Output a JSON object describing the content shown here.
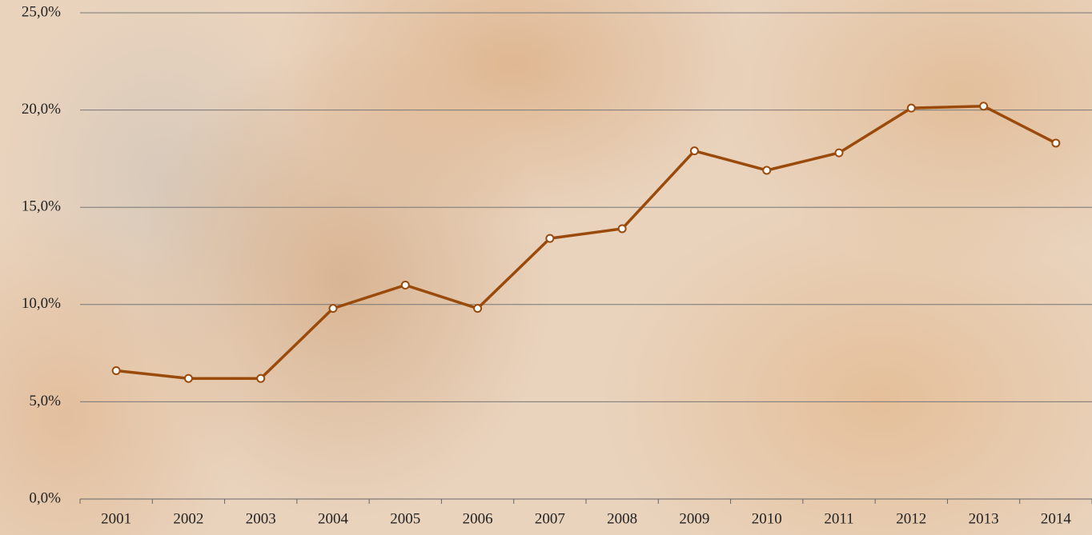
{
  "chart_data": {
    "type": "line",
    "categories": [
      "2001",
      "2002",
      "2003",
      "2004",
      "2005",
      "2006",
      "2007",
      "2008",
      "2009",
      "2010",
      "2011",
      "2012",
      "2013",
      "2014"
    ],
    "series": [
      {
        "color": "#9a4a0b",
        "values": [
          6.6,
          6.2,
          6.2,
          9.8,
          11.0,
          9.8,
          13.4,
          13.9,
          17.9,
          16.9,
          17.8,
          20.1,
          20.2,
          18.3
        ]
      }
    ],
    "ylim": [
      0,
      25
    ],
    "yticks": [
      {
        "value": 0,
        "label": "0,0%"
      },
      {
        "value": 5,
        "label": "5,0%"
      },
      {
        "value": 10,
        "label": "10,0%"
      },
      {
        "value": 15,
        "label": "15,0%"
      },
      {
        "value": 20,
        "label": "20,0%"
      },
      {
        "value": 25,
        "label": "25,0%"
      }
    ],
    "grid": true
  }
}
